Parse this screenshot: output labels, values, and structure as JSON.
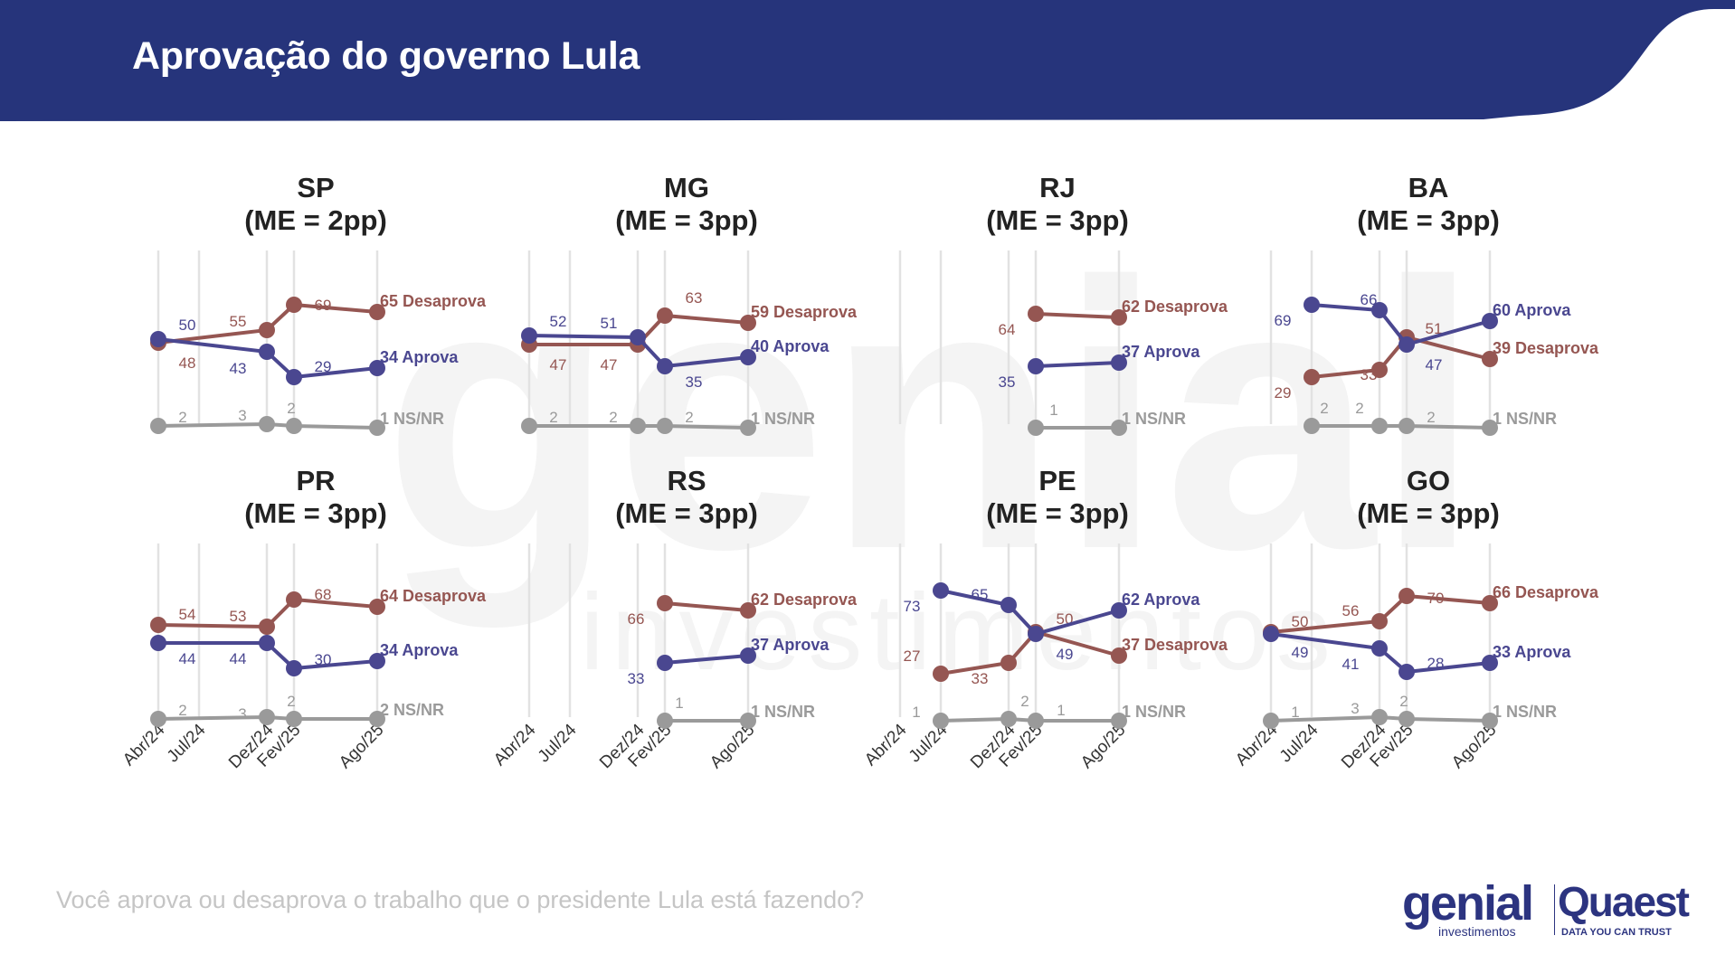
{
  "title": "Aprovação do governo Lula",
  "question": "Você aprova ou desaprova o trabalho que o presidente Lula está fazendo?",
  "logos": {
    "genial": "genial",
    "genial_sub": "investimentos",
    "quaest": "Quaest",
    "quaest_sub": "DATA YOU CAN TRUST"
  },
  "watermark": {
    "main": "genial",
    "sub": "investimentos"
  },
  "colors": {
    "header": "#26347b",
    "aprova": "#4a4790",
    "desaprova": "#955652",
    "nsnr": "#9a9a9a",
    "grid": "#e2e2e2"
  },
  "chart_data": [
    {
      "type": "line",
      "state": "SP",
      "subtitle": "(ME = 2pp)",
      "x": [
        "Abr/24",
        "Jul/24",
        "Dez/24",
        "Fev/25",
        "Ago/25"
      ],
      "series": [
        {
          "name": "Desaprova",
          "values": [
            48,
            null,
            55,
            69,
            65
          ],
          "labels": [
            "48",
            "",
            "55",
            "69",
            "65 Desaprova"
          ]
        },
        {
          "name": "Aprova",
          "values": [
            50,
            null,
            43,
            29,
            34
          ],
          "labels": [
            "50",
            "",
            "43",
            "29",
            "34 Aprova"
          ]
        },
        {
          "name": "NS/NR",
          "values": [
            2,
            null,
            3,
            2,
            1
          ],
          "labels": [
            "2",
            "",
            "3",
            "2",
            "1 NS/NR"
          ]
        }
      ]
    },
    {
      "type": "line",
      "state": "MG",
      "subtitle": "(ME = 3pp)",
      "x": [
        "Abr/24",
        "Jul/24",
        "Dez/24",
        "Fev/25",
        "Ago/25"
      ],
      "series": [
        {
          "name": "Desaprova",
          "values": [
            47,
            null,
            47,
            63,
            59
          ],
          "labels": [
            "47",
            "",
            "47",
            "63",
            "59 Desaprova"
          ]
        },
        {
          "name": "Aprova",
          "values": [
            52,
            null,
            51,
            35,
            40
          ],
          "labels": [
            "52",
            "",
            "51",
            "35",
            "40 Aprova"
          ]
        },
        {
          "name": "NS/NR",
          "values": [
            2,
            null,
            2,
            2,
            1
          ],
          "labels": [
            "2",
            "",
            "2",
            "2",
            "1 NS/NR"
          ]
        }
      ]
    },
    {
      "type": "line",
      "state": "RJ",
      "subtitle": "(ME = 3pp)",
      "x": [
        "Abr/24",
        "Jul/24",
        "Dez/24",
        "Fev/25",
        "Ago/25"
      ],
      "series": [
        {
          "name": "Desaprova",
          "values": [
            null,
            null,
            null,
            64,
            62
          ],
          "labels": [
            "",
            "",
            "",
            "64",
            "62 Desaprova"
          ]
        },
        {
          "name": "Aprova",
          "values": [
            null,
            null,
            null,
            35,
            37
          ],
          "labels": [
            "",
            "",
            "",
            "35",
            "37 Aprova"
          ]
        },
        {
          "name": "NS/NR",
          "values": [
            null,
            null,
            null,
            1,
            1
          ],
          "labels": [
            "",
            "",
            "",
            "1",
            "1 NS/NR"
          ]
        }
      ]
    },
    {
      "type": "line",
      "state": "BA",
      "subtitle": "(ME = 3pp)",
      "x": [
        "Abr/24",
        "Jul/24",
        "Dez/24",
        "Fev/25",
        "Ago/25"
      ],
      "series": [
        {
          "name": "Desaprova",
          "values": [
            null,
            29,
            33,
            51,
            39
          ],
          "labels": [
            "",
            "29",
            "33",
            "51",
            "39 Desaprova"
          ]
        },
        {
          "name": "Aprova",
          "values": [
            null,
            69,
            66,
            47,
            60
          ],
          "labels": [
            "",
            "69",
            "66",
            "47",
            "60 Aprova"
          ]
        },
        {
          "name": "NS/NR",
          "values": [
            null,
            2,
            2,
            2,
            1
          ],
          "labels": [
            "",
            "2",
            "2",
            "2",
            "1 NS/NR"
          ]
        }
      ]
    },
    {
      "type": "line",
      "state": "PR",
      "subtitle": "(ME = 3pp)",
      "x": [
        "Abr/24",
        "Jul/24",
        "Dez/24",
        "Fev/25",
        "Ago/25"
      ],
      "series": [
        {
          "name": "Desaprova",
          "values": [
            54,
            null,
            53,
            68,
            64
          ],
          "labels": [
            "54",
            "",
            "53",
            "68",
            "64 Desaprova"
          ]
        },
        {
          "name": "Aprova",
          "values": [
            44,
            null,
            44,
            30,
            34
          ],
          "labels": [
            "44",
            "",
            "44",
            "30",
            "34 Aprova"
          ]
        },
        {
          "name": "NS/NR",
          "values": [
            2,
            null,
            3,
            2,
            2
          ],
          "labels": [
            "2",
            "",
            "3",
            "2",
            "2 NS/NR"
          ]
        }
      ]
    },
    {
      "type": "line",
      "state": "RS",
      "subtitle": "(ME = 3pp)",
      "x": [
        "Abr/24",
        "Jul/24",
        "Dez/24",
        "Fev/25",
        "Ago/25"
      ],
      "series": [
        {
          "name": "Desaprova",
          "values": [
            null,
            null,
            null,
            66,
            62
          ],
          "labels": [
            "",
            "",
            "",
            "66",
            "62 Desaprova"
          ]
        },
        {
          "name": "Aprova",
          "values": [
            null,
            null,
            null,
            33,
            37
          ],
          "labels": [
            "",
            "",
            "",
            "33",
            "37 Aprova"
          ]
        },
        {
          "name": "NS/NR",
          "values": [
            null,
            null,
            null,
            1,
            1
          ],
          "labels": [
            "",
            "",
            "",
            "1",
            "1 NS/NR"
          ]
        }
      ]
    },
    {
      "type": "line",
      "state": "PE",
      "subtitle": "(ME = 3pp)",
      "x": [
        "Abr/24",
        "Jul/24",
        "Dez/24",
        "Fev/25",
        "Ago/25"
      ],
      "series": [
        {
          "name": "Desaprova",
          "values": [
            null,
            27,
            33,
            50,
            37
          ],
          "labels": [
            "",
            "27",
            "33",
            "50",
            "37 Desaprova"
          ]
        },
        {
          "name": "Aprova",
          "values": [
            null,
            73,
            65,
            49,
            62
          ],
          "labels": [
            "",
            "73",
            "65",
            "49",
            "62 Aprova"
          ]
        },
        {
          "name": "NS/NR",
          "values": [
            null,
            1,
            2,
            1,
            1
          ],
          "labels": [
            "",
            "1",
            "2",
            "1",
            "1 NS/NR"
          ]
        }
      ]
    },
    {
      "type": "line",
      "state": "GO",
      "subtitle": "(ME = 3pp)",
      "x": [
        "Abr/24",
        "Jul/24",
        "Dez/24",
        "Fev/25",
        "Ago/25"
      ],
      "series": [
        {
          "name": "Desaprova",
          "values": [
            50,
            null,
            56,
            70,
            66
          ],
          "labels": [
            "50",
            "",
            "56",
            "70",
            "66 Desaprova"
          ]
        },
        {
          "name": "Aprova",
          "values": [
            49,
            null,
            41,
            28,
            33
          ],
          "labels": [
            "49",
            "",
            "41",
            "28",
            "33 Aprova"
          ]
        },
        {
          "name": "NS/NR",
          "values": [
            1,
            null,
            3,
            2,
            1
          ],
          "labels": [
            "1",
            "",
            "3",
            "2",
            "1 NS/NR"
          ]
        }
      ]
    }
  ]
}
